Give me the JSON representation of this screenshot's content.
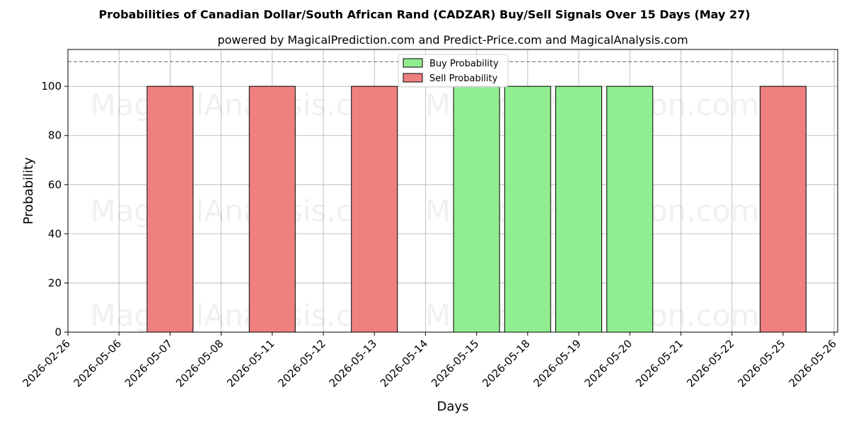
{
  "chart_data": {
    "type": "bar",
    "title": "Probabilities of Canadian Dollar/South African Rand (CADZAR) Buy/Sell Signals Over 15 Days (May 27)",
    "subtitle": "powered by MagicalPrediction.com and Predict-Price.com and MagicalAnalysis.com",
    "xlabel": "Days",
    "ylabel": "Probability",
    "ylim": [
      0,
      115
    ],
    "yticks": [
      0,
      20,
      40,
      60,
      80,
      100
    ],
    "threshold_line": 110,
    "grid": true,
    "legend_position": "top-center",
    "categories": [
      "2026-02-26",
      "2026-05-06",
      "2026-05-07",
      "2026-05-08",
      "2026-05-11",
      "2026-05-12",
      "2026-05-13",
      "2026-05-14",
      "2026-05-15",
      "2026-05-18",
      "2026-05-19",
      "2026-05-20",
      "2026-05-21",
      "2026-05-22",
      "2026-05-25",
      "2026-05-26"
    ],
    "series": [
      {
        "name": "Buy Probability",
        "color": "#90ee90",
        "bars": [
          {
            "center_index": 8,
            "value": 100
          },
          {
            "center_index": 9,
            "value": 100
          },
          {
            "center_index": 10,
            "value": 100
          },
          {
            "center_index": 11,
            "value": 100
          }
        ]
      },
      {
        "name": "Sell Probability",
        "color": "#f08080",
        "bars": [
          {
            "center_index": 2,
            "value": 100
          },
          {
            "center_index": 4,
            "value": 100
          },
          {
            "center_index": 6,
            "value": 100
          },
          {
            "center_index": 14,
            "value": 100
          }
        ]
      }
    ],
    "watermarks": [
      "MagicalAnalysis.com",
      "MagicalPrediction.com"
    ]
  }
}
